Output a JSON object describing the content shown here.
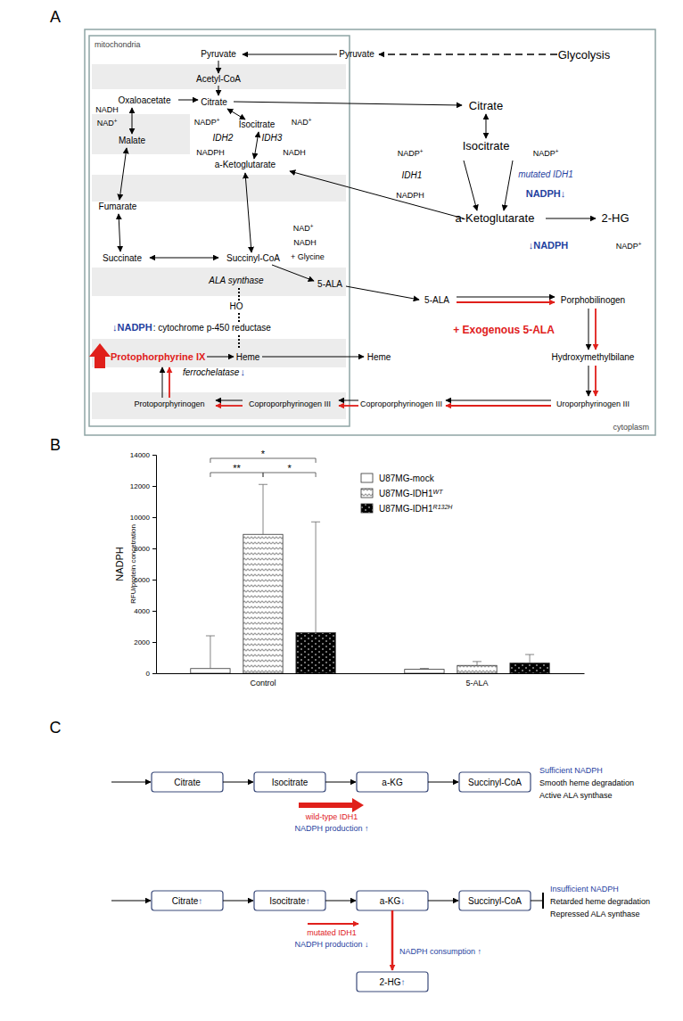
{
  "panel_labels": [
    "A",
    "B",
    "C"
  ],
  "pathway": {
    "compartments": [
      "mitochondria",
      "cytoplasm"
    ],
    "nodes": [
      "Pyruvate",
      "Pyruvate",
      "Glycolysis",
      "Acetyl-CoA",
      "Citrate",
      "Oxaloacetate",
      "NADH",
      "NAD+",
      "Malate",
      "Isocitrate",
      "NADP+",
      "NAD+",
      "IDH2",
      "IDH3",
      "NADPH",
      "NADH",
      "a-Ketoglutarate",
      "Fumarate",
      "Succinate",
      "Succinyl-CoA",
      "NAD+",
      "NADH",
      "+ Glycine",
      "ALA synthase",
      "5-ALA",
      "HO",
      "↓NADPH",
      ": cytochrome p-450 reductase",
      "Protophorphyrine IX",
      "Heme",
      "ferrochelatase",
      "↓",
      "Protoporphyrinogen",
      "Coproporphyrinogen III",
      "Citrate",
      "Isocitrate",
      "NADP+",
      "NADP+",
      "IDH1",
      "mutated IDH1",
      "NADPH",
      "NADPH↓",
      "a-Ketoglutarate",
      "2-HG",
      "↓NADPH",
      "NADP+",
      "5-ALA",
      "Porphobilinogen",
      "+ Exogenous 5-ALA",
      "Heme",
      "Hydroxymethylbilane",
      "Uroporphyrinogen III",
      "Coproporphyrinogen III"
    ]
  },
  "chart_data": {
    "type": "bar",
    "categories": [
      "Control",
      "5-ALA"
    ],
    "ylabel": [
      "NADPH",
      "RFU/protein concetration"
    ],
    "series": [
      {
        "name": "U87MG-mock",
        "color": "#ffffff",
        "values": [
          300,
          250
        ],
        "errors": [
          2100,
          60
        ]
      },
      {
        "name": "U87MG-IDH1WT",
        "color": "#9a9a9a",
        "values": [
          8900,
          500
        ],
        "errors": [
          3200,
          250
        ]
      },
      {
        "name": "U87MG-IDH1R132H",
        "color": "#000000",
        "values": [
          2600,
          650
        ],
        "errors": [
          7100,
          550
        ]
      }
    ],
    "ylim": [
      0,
      14000
    ],
    "yticks": [
      0,
      2000,
      4000,
      6000,
      8000,
      10000,
      12000,
      14000
    ],
    "grid": false,
    "legend": "upper right",
    "annotations": [
      {
        "category": "Control",
        "from": "U87MG-mock",
        "to": "U87MG-IDH1WT",
        "text": "**"
      },
      {
        "category": "Control",
        "from": "U87MG-IDH1WT",
        "to": "U87MG-IDH1R132H",
        "text": "*"
      },
      {
        "category": "Control",
        "from": "U87MG-mock",
        "to": "U87MG-IDH1R132H",
        "text": "*"
      }
    ]
  },
  "flow": {
    "rows": [
      {
        "boxes": [
          {
            "label": "Citrate"
          },
          {
            "label": "Isocitrate"
          },
          {
            "label": "a-KG"
          },
          {
            "label": "Succinyl-CoA"
          }
        ],
        "outcome": [
          "Sufficient NADPH",
          "Smooth heme degradation",
          "Active ALA synthase"
        ],
        "enzyme": "wild-type IDH1",
        "effect": "NADPH production ↑"
      },
      {
        "boxes": [
          {
            "label": "Citrate",
            "change": "↑"
          },
          {
            "label": "Isocitrate",
            "change": "↑"
          },
          {
            "label": "a-KG",
            "change": "↓"
          },
          {
            "label": "Succinyl-CoA"
          }
        ],
        "outcome": [
          "Insufficient NADPH",
          "Retarded heme degradation",
          "Repressed ALA synthase"
        ],
        "enzyme": "mutated IDH1",
        "effect": "NADPH production ↓",
        "branch": {
          "label": "2-HG",
          "change": "↑",
          "effect": "NADPH consumption ↑"
        }
      }
    ]
  }
}
